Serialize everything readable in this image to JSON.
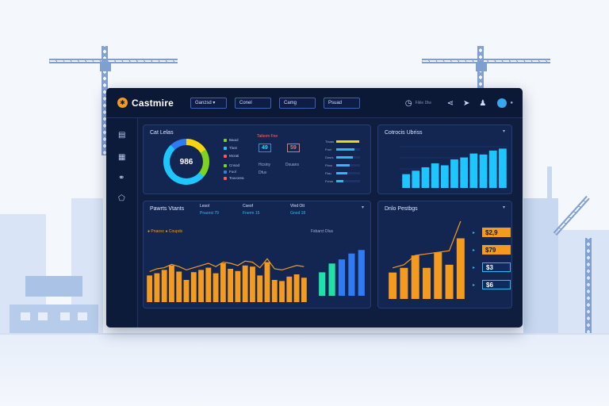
{
  "app": {
    "name": "Castmire"
  },
  "header": {
    "filters": [
      {
        "label": "Ganzsd ▾"
      },
      {
        "label": "Conel"
      },
      {
        "label": "Camg"
      },
      {
        "label": "Psuad"
      }
    ],
    "status_text": "Fikle Dlw"
  },
  "sidebar": {
    "icons": [
      "document-icon",
      "image-icon",
      "link-icon",
      "shield-icon"
    ]
  },
  "panel_overview": {
    "title": "Cat Lelas",
    "donut_value": "986",
    "donut_segments": [
      {
        "color": "#f5d50f",
        "pct": 16
      },
      {
        "color": "#7ed321",
        "pct": 20
      },
      {
        "color": "#1ec6ff",
        "pct": 52
      },
      {
        "color": "#2e7bf3",
        "pct": 12
      }
    ],
    "legend": [
      {
        "label": "Bauul",
        "color": "#7ed321"
      },
      {
        "label": "Tlust",
        "color": "#1ec6ff"
      },
      {
        "label": "Mcrati",
        "color": "#ff5a4e"
      },
      {
        "label": "Cnsod",
        "color": "#7ed321"
      },
      {
        "label": "Fuol",
        "color": "#2e7bf3"
      },
      {
        "label": "Touvorea",
        "color": "#ff5a4e"
      }
    ],
    "kpis": [
      {
        "value": "49",
        "caption": "Taibom Fne"
      },
      {
        "value": "59",
        "caption": "Hcsiny"
      },
      {
        "value": "Dfuv",
        "caption": "Dsuans"
      }
    ],
    "bars": [
      {
        "label": "Tbuas",
        "level": 0.95
      },
      {
        "label": "Fnct",
        "level": 0.75
      },
      {
        "label": "Dosrs",
        "level": 0.7
      },
      {
        "label": "Fbou",
        "level": 0.55
      },
      {
        "label": "Flau",
        "level": 0.45
      },
      {
        "label": "Fvrus",
        "level": 0.3
      }
    ]
  },
  "panel_cards": {
    "title": "Cotrocis Ubriss"
  },
  "panel_trends": {
    "title": "Pawrts Vtants",
    "tabs": [
      {
        "label": "Lesol",
        "sub": "Pnaorsi 79"
      },
      {
        "label": "Cseof",
        "sub": "Fnerm 15"
      },
      {
        "label": "Vlnd Ott",
        "sub": "Gnod 18"
      }
    ],
    "chart_legend": "● Pnaosc  ● Coupds",
    "mini_title": "Fsbarct Dlus"
  },
  "panel_ranking": {
    "title": "Dnlo Pestbgs",
    "items": [
      {
        "value": "$2,9",
        "color": "#f39a1f"
      },
      {
        "value": "$79",
        "color": "#f39a1f"
      },
      {
        "value": "$3",
        "color": "#2fb8f2"
      },
      {
        "value": "$6",
        "color": "#2fb8f2"
      }
    ]
  },
  "chart_data": [
    {
      "type": "bar",
      "title": "Cotrocis Ubriss",
      "values": [
        28,
        35,
        42,
        50,
        46,
        58,
        62,
        70,
        68,
        76,
        80
      ],
      "ylim": [
        0,
        100
      ],
      "colors": [
        "#1ec6ff"
      ]
    },
    {
      "type": "bar",
      "title": "Pawrts Vtants",
      "values": [
        48,
        52,
        58,
        66,
        55,
        40,
        54,
        58,
        62,
        52,
        70,
        60,
        56,
        66,
        64,
        48,
        72,
        40,
        38,
        46,
        50,
        44
      ],
      "line": [
        55,
        60,
        62,
        68,
        64,
        58,
        62,
        66,
        70,
        64,
        72,
        70,
        66,
        74,
        72,
        62,
        78,
        60,
        58,
        62,
        66,
        64
      ],
      "ylim": [
        0,
        100
      ],
      "colors": [
        "#f39a1f",
        "#f39a1f"
      ]
    },
    {
      "type": "bar",
      "title": "Fsbarct Dlus",
      "values": [
        40,
        55,
        62,
        72,
        78
      ],
      "ylim": [
        0,
        100
      ],
      "colors": [
        "#1ee0a8",
        "#2e7bf3"
      ]
    },
    {
      "type": "bar",
      "title": "Dnlo Pestbgs",
      "values": [
        34,
        40,
        56,
        40,
        60,
        44,
        78
      ],
      "line": [
        40,
        44,
        56,
        58,
        60,
        62,
        100
      ],
      "ylim": [
        0,
        100
      ],
      "colors": [
        "#f39a1f"
      ]
    }
  ]
}
